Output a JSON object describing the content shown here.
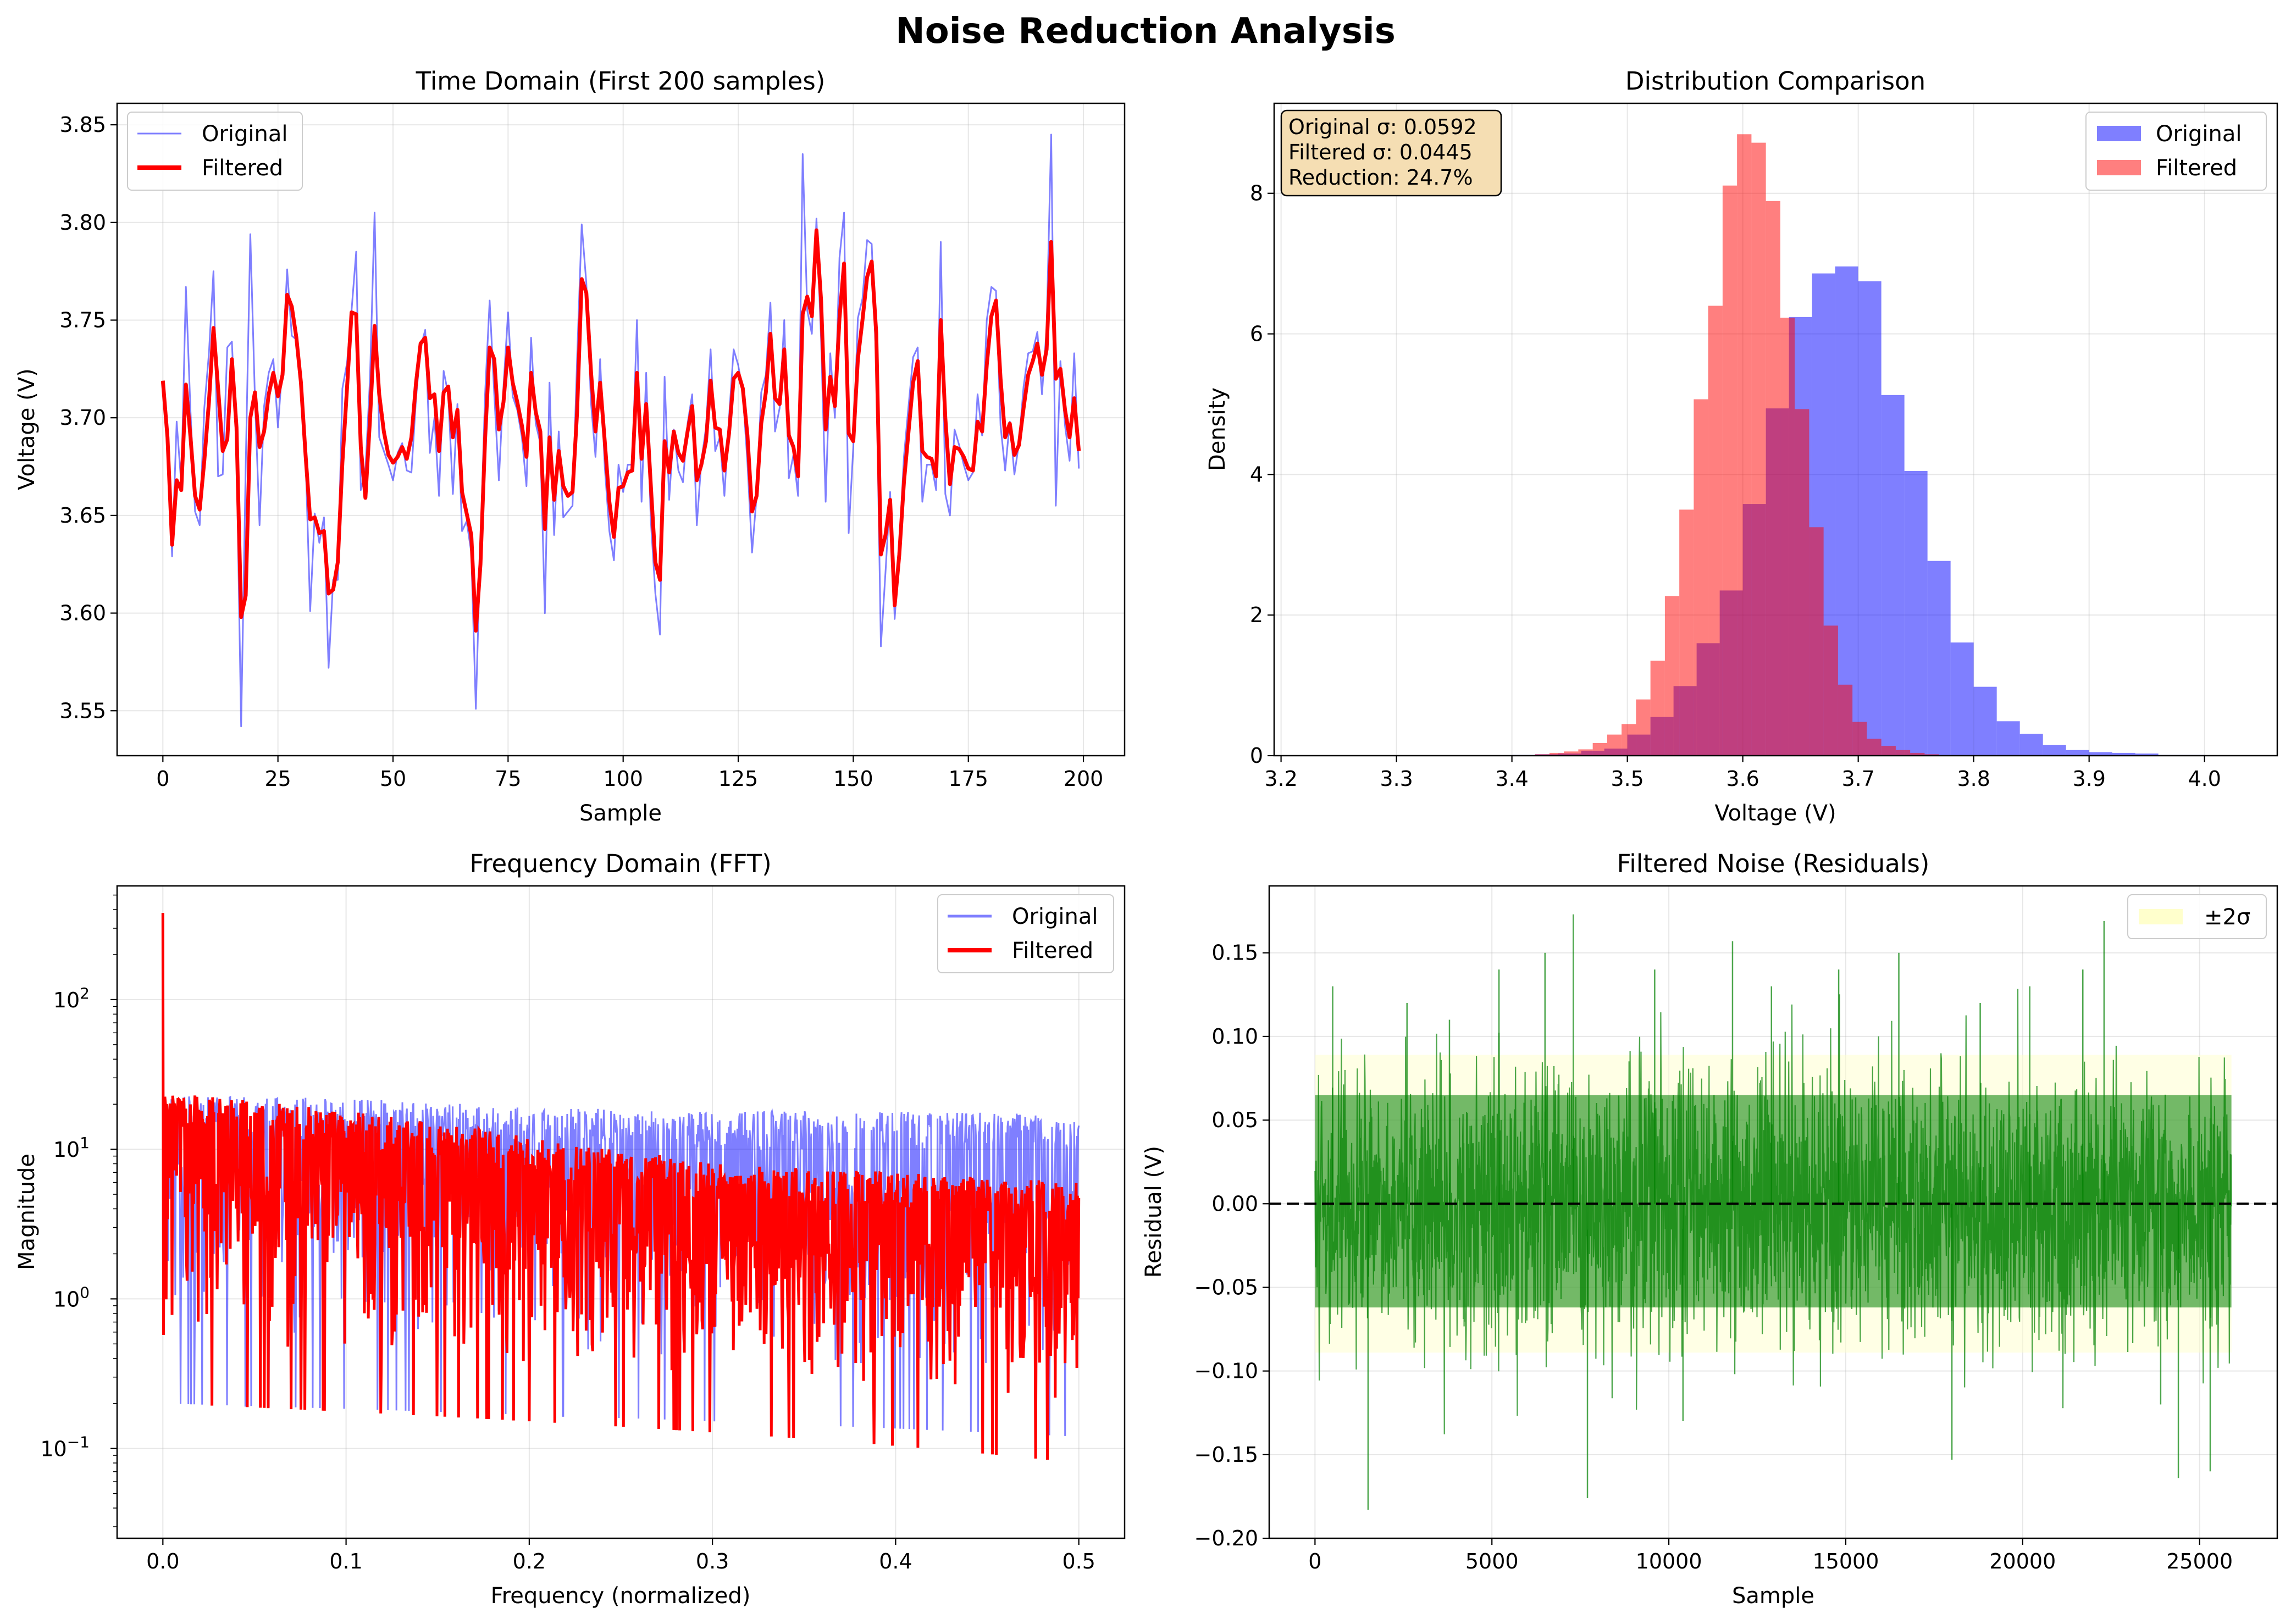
{
  "figure": {
    "suptitle": "Noise Reduction Analysis"
  },
  "colors": {
    "original": "#0000ff",
    "filtered": "#ff0000",
    "residual": "#008000",
    "band": "#ffffcc",
    "annotation_bg": "#f5deb3"
  },
  "chart_data": [
    {
      "id": "time",
      "type": "line",
      "title": "Time Domain (First 200 samples)",
      "xlabel": "Sample",
      "ylabel": "Voltage (V)",
      "xlim": [
        -9.95,
        208.95
      ],
      "ylim": [
        3.527,
        3.861
      ],
      "xticks": [
        0,
        25,
        50,
        75,
        100,
        125,
        150,
        175,
        200
      ],
      "yticks": [
        3.55,
        3.6,
        3.65,
        3.7,
        3.75,
        3.8,
        3.85
      ],
      "ytick_labels": [
        "3.55",
        "3.60",
        "3.65",
        "3.70",
        "3.75",
        "3.80",
        "3.85"
      ],
      "grid": true,
      "legend": {
        "position": "top-left",
        "entries": [
          "Original",
          "Filtered"
        ]
      },
      "series": [
        {
          "name": "Original",
          "values": [
            3.718,
            3.69,
            3.629,
            3.698,
            3.666,
            3.767,
            3.703,
            3.652,
            3.645,
            3.705,
            3.733,
            3.775,
            3.67,
            3.671,
            3.736,
            3.739,
            3.683,
            3.542,
            3.675,
            3.794,
            3.71,
            3.645,
            3.706,
            3.723,
            3.73,
            3.695,
            3.728,
            3.776,
            3.742,
            3.74,
            3.719,
            3.68,
            3.601,
            3.651,
            3.636,
            3.649,
            3.572,
            3.617,
            3.617,
            3.715,
            3.728,
            3.755,
            3.785,
            3.663,
            3.673,
            3.72,
            3.805,
            3.69,
            3.683,
            3.676,
            3.668,
            3.682,
            3.687,
            3.673,
            3.672,
            3.71,
            3.736,
            3.745,
            3.682,
            3.7,
            3.66,
            3.724,
            3.712,
            3.661,
            3.707,
            3.642,
            3.647,
            3.631,
            3.551,
            3.635,
            3.712,
            3.76,
            3.712,
            3.668,
            3.716,
            3.754,
            3.711,
            3.704,
            3.69,
            3.665,
            3.741,
            3.697,
            3.687,
            3.6,
            3.718,
            3.64,
            3.693,
            3.649,
            3.652,
            3.655,
            3.73,
            3.799,
            3.769,
            3.708,
            3.68,
            3.73,
            3.675,
            3.642,
            3.627,
            3.676,
            3.662,
            3.676,
            3.676,
            3.75,
            3.657,
            3.723,
            3.648,
            3.61,
            3.589,
            3.721,
            3.658,
            3.694,
            3.673,
            3.667,
            3.697,
            3.712,
            3.645,
            3.678,
            3.695,
            3.735,
            3.683,
            3.69,
            3.66,
            3.7,
            3.735,
            3.727,
            3.713,
            3.677,
            3.631,
            3.66,
            3.713,
            3.722,
            3.759,
            3.693,
            3.705,
            3.75,
            3.669,
            3.681,
            3.66,
            3.835,
            3.755,
            3.743,
            3.802,
            3.74,
            3.657,
            3.733,
            3.7,
            3.782,
            3.805,
            3.641,
            3.685,
            3.751,
            3.761,
            3.791,
            3.789,
            3.726,
            3.583,
            3.621,
            3.662,
            3.597,
            3.634,
            3.68,
            3.706,
            3.731,
            3.736,
            3.657,
            3.676,
            3.676,
            3.663,
            3.79,
            3.661,
            3.65,
            3.694,
            3.686,
            3.676,
            3.668,
            3.672,
            3.712,
            3.691,
            3.75,
            3.767,
            3.765,
            3.696,
            3.673,
            3.698,
            3.671,
            3.687,
            3.716,
            3.733,
            3.734,
            3.744,
            3.712,
            3.746,
            3.845,
            3.655,
            3.729,
            3.696,
            3.678,
            3.733,
            3.674
          ]
        },
        {
          "name": "Filtered",
          "values": [
            3.719,
            3.69,
            3.635,
            3.668,
            3.663,
            3.717,
            3.69,
            3.66,
            3.653,
            3.678,
            3.708,
            3.746,
            3.715,
            3.683,
            3.689,
            3.73,
            3.695,
            3.598,
            3.609,
            3.7,
            3.713,
            3.685,
            3.693,
            3.712,
            3.723,
            3.711,
            3.722,
            3.763,
            3.757,
            3.741,
            3.718,
            3.681,
            3.648,
            3.649,
            3.641,
            3.642,
            3.61,
            3.612,
            3.626,
            3.677,
            3.715,
            3.754,
            3.753,
            3.685,
            3.659,
            3.699,
            3.747,
            3.712,
            3.693,
            3.681,
            3.677,
            3.68,
            3.685,
            3.679,
            3.69,
            3.718,
            3.738,
            3.741,
            3.71,
            3.712,
            3.683,
            3.713,
            3.716,
            3.69,
            3.704,
            3.662,
            3.651,
            3.64,
            3.591,
            3.625,
            3.689,
            3.736,
            3.73,
            3.694,
            3.708,
            3.736,
            3.718,
            3.708,
            3.696,
            3.68,
            3.723,
            3.703,
            3.693,
            3.643,
            3.69,
            3.658,
            3.683,
            3.665,
            3.66,
            3.662,
            3.703,
            3.771,
            3.764,
            3.724,
            3.693,
            3.718,
            3.688,
            3.657,
            3.639,
            3.664,
            3.665,
            3.672,
            3.673,
            3.723,
            3.679,
            3.707,
            3.666,
            3.626,
            3.617,
            3.688,
            3.672,
            3.693,
            3.682,
            3.678,
            3.693,
            3.706,
            3.668,
            3.676,
            3.688,
            3.719,
            3.695,
            3.694,
            3.673,
            3.692,
            3.72,
            3.723,
            3.715,
            3.691,
            3.652,
            3.66,
            3.697,
            3.713,
            3.743,
            3.71,
            3.707,
            3.735,
            3.691,
            3.685,
            3.67,
            3.753,
            3.762,
            3.752,
            3.796,
            3.76,
            3.694,
            3.721,
            3.706,
            3.751,
            3.779,
            3.692,
            3.688,
            3.73,
            3.75,
            3.772,
            3.78,
            3.743,
            3.63,
            3.64,
            3.658,
            3.604,
            3.63,
            3.667,
            3.693,
            3.718,
            3.729,
            3.683,
            3.68,
            3.679,
            3.67,
            3.75,
            3.7,
            3.666,
            3.685,
            3.684,
            3.68,
            3.674,
            3.673,
            3.698,
            3.693,
            3.727,
            3.752,
            3.76,
            3.72,
            3.69,
            3.697,
            3.681,
            3.686,
            3.705,
            3.722,
            3.729,
            3.738,
            3.722,
            3.735,
            3.79,
            3.72,
            3.725,
            3.704,
            3.69,
            3.71,
            3.683
          ]
        }
      ]
    },
    {
      "id": "dist",
      "type": "bar",
      "title": "Distribution Comparison",
      "xlabel": "Voltage (V)",
      "ylabel": "Density",
      "xlim": [
        3.194,
        4.063
      ],
      "ylim": [
        0,
        9.28
      ],
      "xticks": [
        3.2,
        3.3,
        3.4,
        3.5,
        3.6,
        3.7,
        3.8,
        3.9,
        4.0
      ],
      "xtick_labels": [
        "3.2",
        "3.3",
        "3.4",
        "3.5",
        "3.6",
        "3.7",
        "3.8",
        "3.9",
        "4.0"
      ],
      "yticks": [
        0,
        2,
        4,
        6,
        8
      ],
      "grid": true,
      "legend": {
        "position": "top-right",
        "entries": [
          "Original",
          "Filtered"
        ]
      },
      "annotation": [
        "Original σ: 0.0592",
        "Filtered σ: 0.0445",
        "Reduction: 24.7%"
      ],
      "series": [
        {
          "name": "Original",
          "bin_start": 3.4,
          "bin_width": 0.02,
          "values": [
            0.01,
            0.02,
            0.03,
            0.07,
            0.1,
            0.3,
            0.55,
            0.99,
            1.6,
            2.35,
            3.58,
            4.94,
            6.24,
            6.86,
            6.96,
            6.75,
            5.13,
            4.05,
            2.77,
            1.61,
            0.98,
            0.49,
            0.31,
            0.15,
            0.08,
            0.05,
            0.04,
            0.03,
            0.01,
            0.01
          ]
        },
        {
          "name": "Filtered",
          "bin_start": 3.42,
          "bin_width": 0.0125,
          "values": [
            0.02,
            0.04,
            0.06,
            0.09,
            0.18,
            0.3,
            0.45,
            0.8,
            1.35,
            2.27,
            3.5,
            5.07,
            6.4,
            8.11,
            8.84,
            8.72,
            7.89,
            6.23,
            4.93,
            3.25,
            1.85,
            1.01,
            0.48,
            0.24,
            0.14,
            0.08,
            0.04,
            0.02
          ]
        }
      ]
    },
    {
      "id": "fft",
      "type": "line",
      "title": "Frequency Domain (FFT)",
      "xlabel": "Frequency (normalized)",
      "ylabel": "Magnitude",
      "xlim": [
        -0.025,
        0.525
      ],
      "ylim_log10": [
        -1.6,
        2.76
      ],
      "yscale": "log",
      "xticks": [
        0.0,
        0.1,
        0.2,
        0.3,
        0.4,
        0.5
      ],
      "xtick_labels": [
        "0.0",
        "0.1",
        "0.2",
        "0.3",
        "0.4",
        "0.5"
      ],
      "yticks_exp": [
        -1,
        0,
        1,
        2
      ],
      "grid": true,
      "legend": {
        "position": "top-right",
        "entries": [
          "Original",
          "Filtered"
        ]
      },
      "peak": {
        "x": 0.0,
        "y": 380
      },
      "series": [
        {
          "name": "Original",
          "envelope": "band",
          "upper_db": [
            [
              0.0,
              23
            ],
            [
              0.1,
              22
            ],
            [
              0.2,
              19
            ],
            [
              0.3,
              18
            ],
            [
              0.4,
              18
            ],
            [
              0.5,
              17
            ]
          ],
          "lower": [
            [
              0.0,
              0.5
            ],
            [
              0.5,
              0.3
            ]
          ]
        },
        {
          "name": "Filtered",
          "envelope": "band",
          "upper_db": [
            [
              0.0,
              24
            ],
            [
              0.1,
              18
            ],
            [
              0.2,
              12
            ],
            [
              0.3,
              8
            ],
            [
              0.4,
              7
            ],
            [
              0.5,
              6
            ]
          ],
          "lower": [
            [
              0.0,
              0.5
            ],
            [
              0.5,
              0.2
            ]
          ]
        }
      ]
    },
    {
      "id": "resid",
      "type": "line",
      "title": "Filtered Noise (Residuals)",
      "xlabel": "Sample",
      "ylabel": "Residual (V)",
      "xlim": [
        -1295,
        27195
      ],
      "ylim": [
        -0.2,
        0.19
      ],
      "xticks": [
        0,
        5000,
        10000,
        15000,
        20000,
        25000
      ],
      "yticks": [
        -0.2,
        -0.15,
        -0.1,
        -0.05,
        0.0,
        0.05,
        0.1,
        0.15
      ],
      "ytick_labels": [
        "−0.20",
        "−0.15",
        "−0.10",
        "−0.05",
        "0.00",
        "0.05",
        "0.10",
        "0.15"
      ],
      "n_samples": 25900,
      "band_sigma": 0.0445,
      "grid": true,
      "legend": {
        "position": "top-right",
        "entries": [
          "±2σ"
        ]
      },
      "spikes": [
        [
          500,
          0.13
        ],
        [
          1500,
          -0.183
        ],
        [
          2600,
          0.12
        ],
        [
          3800,
          0.11
        ],
        [
          5200,
          0.14
        ],
        [
          6500,
          0.15
        ],
        [
          7300,
          0.173
        ],
        [
          7700,
          -0.176
        ],
        [
          9600,
          0.14
        ],
        [
          10400,
          -0.13
        ],
        [
          11800,
          0.157
        ],
        [
          12900,
          0.13
        ],
        [
          14800,
          0.14
        ],
        [
          16500,
          0.15
        ],
        [
          18000,
          -0.153
        ],
        [
          18800,
          0.12
        ],
        [
          20200,
          0.13
        ],
        [
          21700,
          0.14
        ],
        [
          22300,
          0.169
        ],
        [
          23900,
          -0.12
        ],
        [
          24400,
          -0.164
        ],
        [
          25300,
          -0.16
        ]
      ]
    }
  ]
}
